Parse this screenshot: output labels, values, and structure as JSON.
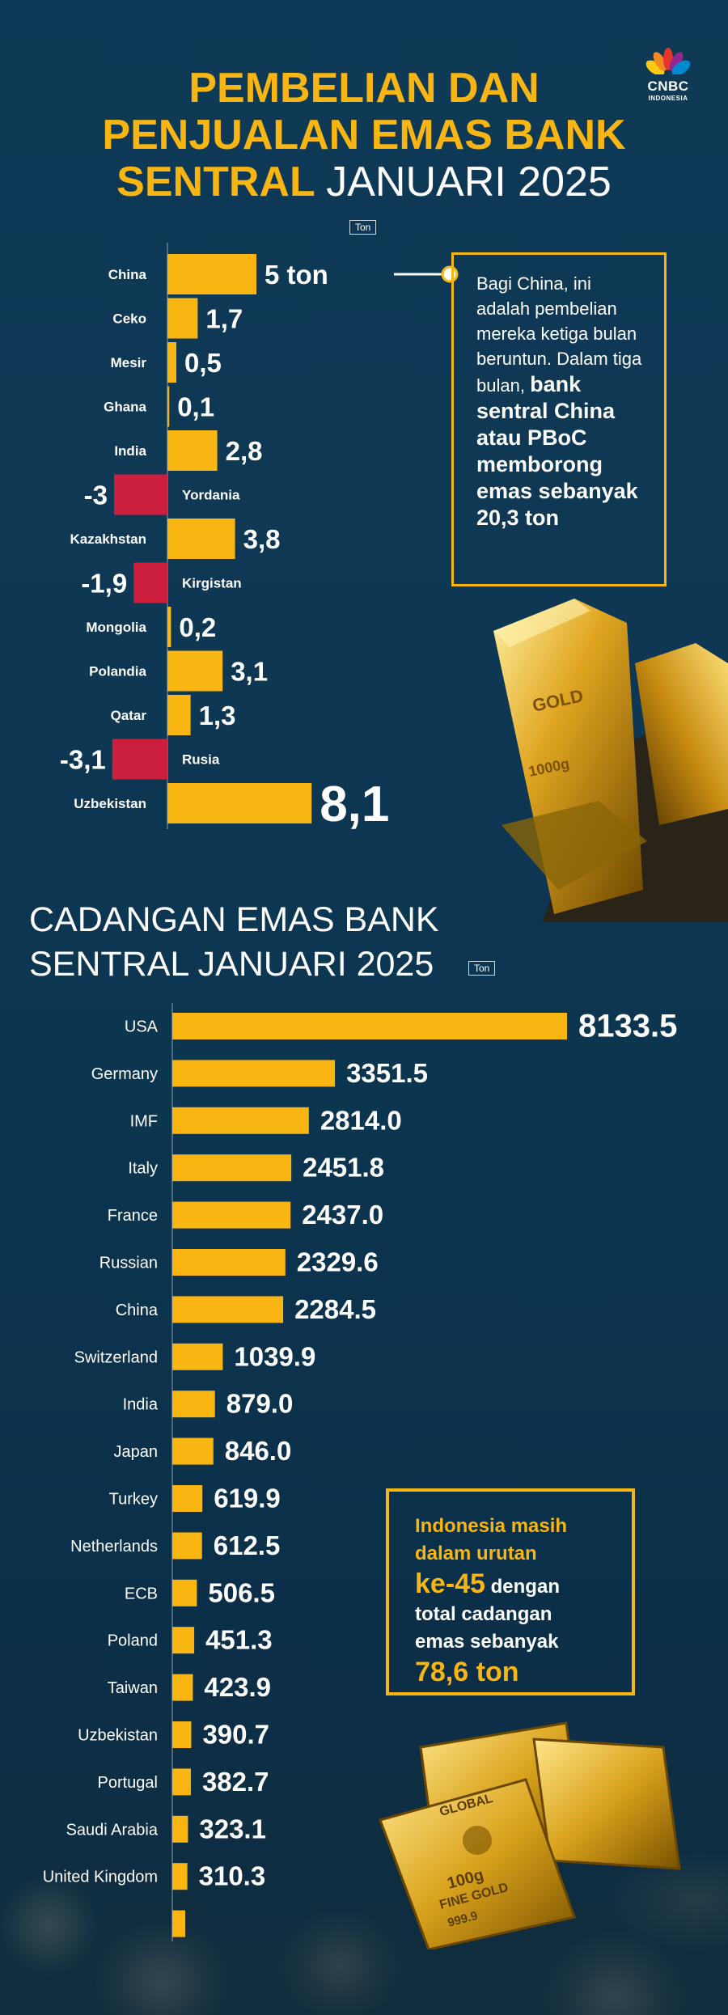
{
  "logo": {
    "name": "CNBC",
    "sub": "INDONESIA"
  },
  "header": {
    "title_line1": "PEMBELIAN DAN",
    "title_line2": "PENJUALAN EMAS BANK",
    "title_line3_bold": "SENTRAL",
    "title_line3_plain": "JANUARI 2025",
    "unit": "Ton"
  },
  "callout": {
    "text_plain": "Bagi China, ini adalah pembelian mereka ketiga bulan beruntun. Dalam tiga bulan,",
    "text_bold": "bank sentral China atau PBoC memborong emas sebanyak 20,3 ton"
  },
  "section2": {
    "title_line1": "CADANGAN EMAS BANK",
    "title_line2": "SENTRAL JANUARI 2025",
    "unit": "Ton"
  },
  "indonesia_box": {
    "line1": "Indonesia masih",
    "line2": "dalam urutan",
    "rank": "ke-45",
    "line3_tail": "dengan",
    "line4": "total cadangan",
    "line5": "emas sebanyak",
    "amount": "78,6 ton"
  },
  "colors": {
    "gold": "#f9b613",
    "red": "#cc1f3e",
    "background": "#0d3550"
  },
  "chart_data": [
    {
      "type": "bar",
      "orientation": "horizontal",
      "unit": "Ton",
      "categories": [
        "China",
        "Ceko",
        "Mesir",
        "Ghana",
        "India",
        "Yordania",
        "Kazakhstan",
        "Kirgistan",
        "Mongolia",
        "Polandia",
        "Qatar",
        "Rusia",
        "Uzbekistan"
      ],
      "values": [
        5,
        1.7,
        0.5,
        0.1,
        2.8,
        -3,
        3.8,
        -1.9,
        0.2,
        3.1,
        1.3,
        -3.1,
        8.1
      ],
      "labels": [
        "5 ton",
        "1,7",
        "0,5",
        "0,1",
        "2,8",
        "-3",
        "3,8",
        "-1,9",
        "0,2",
        "3,1",
        "1,3",
        "-3,1",
        "8,1"
      ]
    },
    {
      "type": "bar",
      "orientation": "horizontal",
      "unit": "Ton",
      "categories": [
        "USA",
        "Germany",
        "IMF",
        "Italy",
        "France",
        "Russian",
        "China",
        "Switzerland",
        "India",
        "Japan",
        "Turkey",
        "Netherlands",
        "ECB",
        "Poland",
        "Taiwan",
        "Uzbekistan",
        "Portugal",
        "Saudi Arabia",
        "United Kingdom"
      ],
      "values": [
        8133.5,
        3351.5,
        2814.0,
        2451.8,
        2437.0,
        2329.6,
        2284.5,
        1039.9,
        879.0,
        846.0,
        619.9,
        612.5,
        506.5,
        451.3,
        423.9,
        390.7,
        382.7,
        323.1,
        310.3
      ],
      "labels": [
        "8133.5",
        "3351.5",
        "2814.0",
        "2451.8",
        "2437.0",
        "2329.6",
        "2284.5",
        "1039.9",
        "879.0",
        "846.0",
        "619.9",
        "612.5",
        "506.5",
        "451.3",
        "423.9",
        "390.7",
        "382.7",
        "323.1",
        "310.3"
      ]
    }
  ]
}
